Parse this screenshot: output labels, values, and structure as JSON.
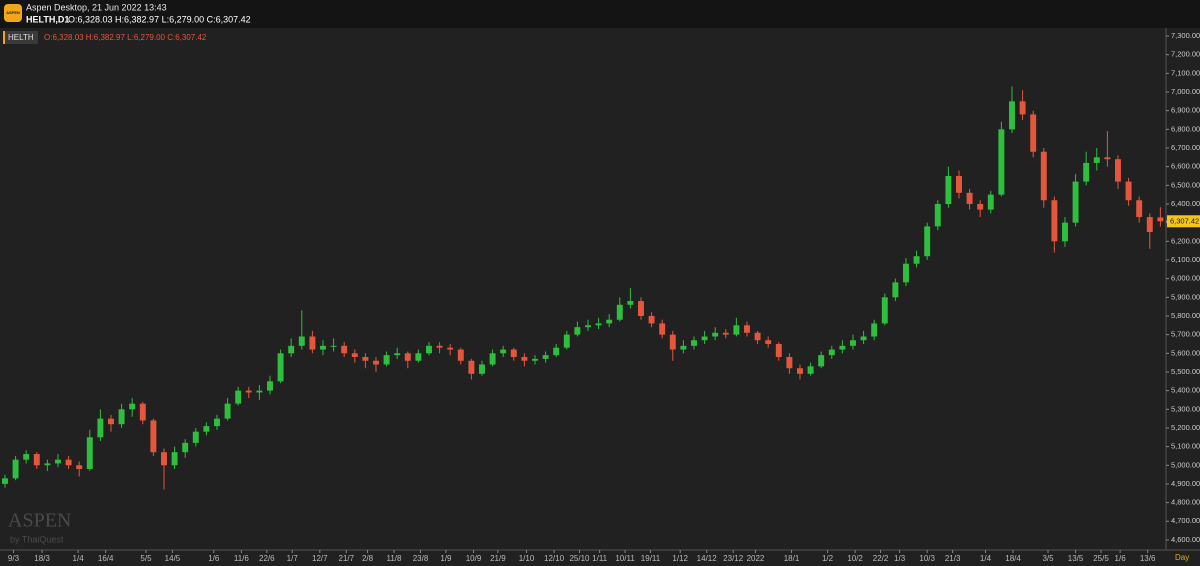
{
  "header": {
    "app_title": "Aspen Desktop, 21 Jun 2022 13:43",
    "symbol": "HELTH,D1",
    "ohlc": "O:6,328.03 H:6,382.97 L:6,279.00 C:6,307.42",
    "icon": "ASPEN"
  },
  "chart_data": {
    "type": "candlestick",
    "overlay": {
      "symbol": "HELTH",
      "ohlc": "O:6,328.03 H:6,382.97 L:6,279.00 C:6,307.42"
    },
    "watermark": {
      "title": "ASPEN",
      "subtitle": "by ThaiQuest"
    },
    "period_label": "Day",
    "up_color": "#2fbf3f",
    "down_color": "#e5573c",
    "xlim": [
      -0.47,
      109.53
    ],
    "ylim": [
      4546,
      7343
    ],
    "last_price": {
      "value": 6307.42,
      "label": "6,307.42"
    },
    "xticks": [
      {
        "value": 0.8,
        "label": "9/3"
      },
      {
        "value": 3.5,
        "label": "18/3"
      },
      {
        "value": 6.9,
        "label": "1/4"
      },
      {
        "value": 9.5,
        "label": "16/4"
      },
      {
        "value": 13.3,
        "label": "5/5"
      },
      {
        "value": 15.8,
        "label": "14/5"
      },
      {
        "value": 19.7,
        "label": "1/6"
      },
      {
        "value": 22.3,
        "label": "11/6"
      },
      {
        "value": 24.7,
        "label": "22/6"
      },
      {
        "value": 27.1,
        "label": "1/7"
      },
      {
        "value": 29.7,
        "label": "12/7"
      },
      {
        "value": 32.2,
        "label": "21/7"
      },
      {
        "value": 34.2,
        "label": "2/8"
      },
      {
        "value": 36.7,
        "label": "11/8"
      },
      {
        "value": 39.2,
        "label": "23/8"
      },
      {
        "value": 41.6,
        "label": "1/9"
      },
      {
        "value": 44.2,
        "label": "10/9"
      },
      {
        "value": 46.5,
        "label": "21/9"
      },
      {
        "value": 49.2,
        "label": "1/10"
      },
      {
        "value": 51.8,
        "label": "12/10"
      },
      {
        "value": 54.2,
        "label": "25/10"
      },
      {
        "value": 56.1,
        "label": "1/11"
      },
      {
        "value": 58.5,
        "label": "10/11"
      },
      {
        "value": 60.9,
        "label": "19/11"
      },
      {
        "value": 63.7,
        "label": "1/12"
      },
      {
        "value": 66.2,
        "label": "14/12"
      },
      {
        "value": 68.7,
        "label": "23/12"
      },
      {
        "value": 70.8,
        "label": "2022"
      },
      {
        "value": 74.2,
        "label": "18/1"
      },
      {
        "value": 77.6,
        "label": "1/2"
      },
      {
        "value": 80.2,
        "label": "10/2"
      },
      {
        "value": 82.6,
        "label": "22/2"
      },
      {
        "value": 84.4,
        "label": "1/3"
      },
      {
        "value": 87.0,
        "label": "10/3"
      },
      {
        "value": 89.4,
        "label": "21/3"
      },
      {
        "value": 92.5,
        "label": "1/4"
      },
      {
        "value": 95.1,
        "label": "18/4"
      },
      {
        "value": 98.4,
        "label": "3/5"
      },
      {
        "value": 101.0,
        "label": "13/5"
      },
      {
        "value": 103.4,
        "label": "25/5"
      },
      {
        "value": 105.2,
        "label": "1/6"
      },
      {
        "value": 107.8,
        "label": "13/6"
      }
    ],
    "yticks": [
      {
        "value": 4600,
        "label": "4,600.00"
      },
      {
        "value": 4700,
        "label": "4,700.00"
      },
      {
        "value": 4800,
        "label": "4,800.00"
      },
      {
        "value": 4900,
        "label": "4,900.00"
      },
      {
        "value": 5000,
        "label": "5,000.00"
      },
      {
        "value": 5100,
        "label": "5,100.00"
      },
      {
        "value": 5200,
        "label": "5,200.00"
      },
      {
        "value": 5300,
        "label": "5,300.00"
      },
      {
        "value": 5400,
        "label": "5,400.00"
      },
      {
        "value": 5500,
        "label": "5,500.00"
      },
      {
        "value": 5600,
        "label": "5,600.00"
      },
      {
        "value": 5700,
        "label": "5,700.00"
      },
      {
        "value": 5800,
        "label": "5,800.00"
      },
      {
        "value": 5900,
        "label": "5,900.00"
      },
      {
        "value": 6000,
        "label": "6,000.00"
      },
      {
        "value": 6100,
        "label": "6,100.00"
      },
      {
        "value": 6200,
        "label": "6,200.00"
      },
      {
        "value": 6300,
        "label": "6,300.00"
      },
      {
        "value": 6400,
        "label": "6,400.00"
      },
      {
        "value": 6500,
        "label": "6,500.00"
      },
      {
        "value": 6600,
        "label": "6,600.00"
      },
      {
        "value": 6700,
        "label": "6,700.00"
      },
      {
        "value": 6800,
        "label": "6,800.00"
      },
      {
        "value": 6900,
        "label": "6,900.00"
      },
      {
        "value": 7000,
        "label": "7,000.00"
      },
      {
        "value": 7100,
        "label": "7,100.00"
      },
      {
        "value": 7200,
        "label": "7,200.00"
      },
      {
        "value": 7300,
        "label": "7,300.00"
      }
    ],
    "candles": [
      [
        4900,
        4950,
        4880,
        4930
      ],
      [
        4930,
        5050,
        4920,
        5030
      ],
      [
        5030,
        5080,
        5010,
        5060
      ],
      [
        5060,
        5070,
        4980,
        5000
      ],
      [
        5000,
        5030,
        4970,
        5010
      ],
      [
        5010,
        5060,
        4990,
        5030
      ],
      [
        5030,
        5050,
        4980,
        5000
      ],
      [
        5000,
        5020,
        4940,
        4980
      ],
      [
        4980,
        5190,
        4970,
        5150
      ],
      [
        5150,
        5300,
        5130,
        5250
      ],
      [
        5250,
        5270,
        5180,
        5220
      ],
      [
        5220,
        5330,
        5200,
        5300
      ],
      [
        5300,
        5360,
        5260,
        5330
      ],
      [
        5330,
        5340,
        5220,
        5240
      ],
      [
        5240,
        5250,
        5050,
        5070
      ],
      [
        5070,
        5090,
        4870,
        5000
      ],
      [
        5000,
        5100,
        4980,
        5070
      ],
      [
        5070,
        5140,
        5040,
        5120
      ],
      [
        5120,
        5200,
        5100,
        5180
      ],
      [
        5180,
        5230,
        5160,
        5210
      ],
      [
        5210,
        5270,
        5190,
        5250
      ],
      [
        5250,
        5360,
        5240,
        5330
      ],
      [
        5330,
        5420,
        5320,
        5400
      ],
      [
        5400,
        5420,
        5360,
        5390
      ],
      [
        5390,
        5430,
        5350,
        5400
      ],
      [
        5400,
        5480,
        5380,
        5450
      ],
      [
        5450,
        5620,
        5440,
        5600
      ],
      [
        5600,
        5680,
        5580,
        5640
      ],
      [
        5640,
        5830,
        5620,
        5690
      ],
      [
        5690,
        5720,
        5600,
        5620
      ],
      [
        5620,
        5670,
        5590,
        5640
      ],
      [
        5640,
        5680,
        5610,
        5640
      ],
      [
        5640,
        5660,
        5580,
        5600
      ],
      [
        5600,
        5620,
        5550,
        5580
      ],
      [
        5580,
        5600,
        5520,
        5560
      ],
      [
        5560,
        5580,
        5500,
        5540
      ],
      [
        5540,
        5610,
        5530,
        5590
      ],
      [
        5590,
        5630,
        5570,
        5600
      ],
      [
        5600,
        5610,
        5520,
        5560
      ],
      [
        5560,
        5620,
        5550,
        5600
      ],
      [
        5600,
        5660,
        5590,
        5640
      ],
      [
        5640,
        5660,
        5600,
        5630
      ],
      [
        5630,
        5650,
        5590,
        5620
      ],
      [
        5620,
        5630,
        5540,
        5560
      ],
      [
        5560,
        5570,
        5460,
        5490
      ],
      [
        5490,
        5560,
        5480,
        5540
      ],
      [
        5540,
        5620,
        5530,
        5600
      ],
      [
        5600,
        5640,
        5580,
        5620
      ],
      [
        5620,
        5630,
        5560,
        5580
      ],
      [
        5580,
        5600,
        5530,
        5560
      ],
      [
        5560,
        5590,
        5540,
        5570
      ],
      [
        5570,
        5610,
        5550,
        5590
      ],
      [
        5590,
        5650,
        5580,
        5630
      ],
      [
        5630,
        5720,
        5620,
        5700
      ],
      [
        5700,
        5770,
        5690,
        5740
      ],
      [
        5740,
        5780,
        5720,
        5750
      ],
      [
        5750,
        5790,
        5730,
        5760
      ],
      [
        5760,
        5810,
        5740,
        5780
      ],
      [
        5780,
        5900,
        5770,
        5860
      ],
      [
        5860,
        5950,
        5840,
        5880
      ],
      [
        5880,
        5900,
        5780,
        5800
      ],
      [
        5800,
        5820,
        5740,
        5760
      ],
      [
        5760,
        5780,
        5680,
        5700
      ],
      [
        5700,
        5720,
        5560,
        5620
      ],
      [
        5620,
        5670,
        5600,
        5640
      ],
      [
        5640,
        5690,
        5620,
        5670
      ],
      [
        5670,
        5720,
        5650,
        5690
      ],
      [
        5690,
        5740,
        5670,
        5710
      ],
      [
        5710,
        5730,
        5680,
        5700
      ],
      [
        5700,
        5790,
        5690,
        5750
      ],
      [
        5750,
        5770,
        5690,
        5710
      ],
      [
        5710,
        5720,
        5650,
        5670
      ],
      [
        5670,
        5690,
        5630,
        5650
      ],
      [
        5650,
        5660,
        5560,
        5580
      ],
      [
        5580,
        5600,
        5490,
        5520
      ],
      [
        5520,
        5540,
        5460,
        5490
      ],
      [
        5490,
        5550,
        5480,
        5530
      ],
      [
        5530,
        5610,
        5520,
        5590
      ],
      [
        5590,
        5640,
        5570,
        5620
      ],
      [
        5620,
        5670,
        5600,
        5640
      ],
      [
        5640,
        5700,
        5620,
        5670
      ],
      [
        5670,
        5720,
        5650,
        5690
      ],
      [
        5690,
        5780,
        5670,
        5760
      ],
      [
        5760,
        5920,
        5750,
        5900
      ],
      [
        5900,
        6000,
        5880,
        5980
      ],
      [
        5980,
        6110,
        5960,
        6080
      ],
      [
        6080,
        6150,
        6060,
        6120
      ],
      [
        6120,
        6300,
        6100,
        6280
      ],
      [
        6280,
        6420,
        6260,
        6400
      ],
      [
        6400,
        6600,
        6380,
        6550
      ],
      [
        6550,
        6580,
        6430,
        6460
      ],
      [
        6460,
        6480,
        6370,
        6400
      ],
      [
        6400,
        6420,
        6330,
        6370
      ],
      [
        6370,
        6470,
        6350,
        6450
      ],
      [
        6450,
        6840,
        6440,
        6800
      ],
      [
        6800,
        7030,
        6780,
        6950
      ],
      [
        6950,
        7010,
        6850,
        6880
      ],
      [
        6880,
        6900,
        6650,
        6680
      ],
      [
        6680,
        6700,
        6380,
        6420
      ],
      [
        6420,
        6440,
        6140,
        6200
      ],
      [
        6200,
        6330,
        6170,
        6300
      ],
      [
        6300,
        6560,
        6280,
        6520
      ],
      [
        6520,
        6680,
        6500,
        6620
      ],
      [
        6620,
        6700,
        6580,
        6650
      ],
      [
        6650,
        6790,
        6600,
        6640
      ],
      [
        6640,
        6660,
        6480,
        6520
      ],
      [
        6520,
        6540,
        6390,
        6420
      ],
      [
        6420,
        6440,
        6300,
        6330
      ],
      [
        6330,
        6350,
        6160,
        6250
      ],
      [
        6328.03,
        6382.97,
        6279,
        6307.42
      ]
    ]
  }
}
